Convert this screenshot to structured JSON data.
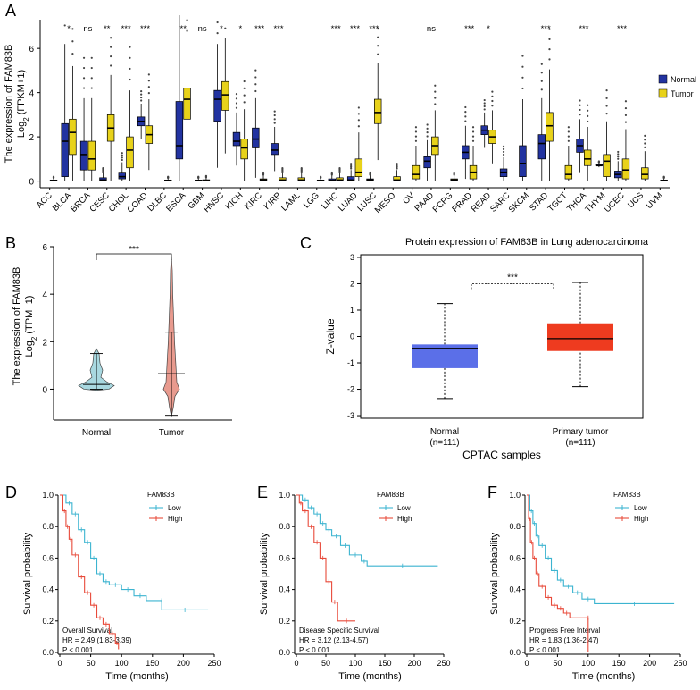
{
  "panels": {
    "A": {
      "label": "A"
    },
    "B": {
      "label": "B"
    },
    "C": {
      "label": "C"
    },
    "D": {
      "label": "D"
    },
    "E": {
      "label": "E"
    },
    "F": {
      "label": "F"
    }
  },
  "colors": {
    "normal": "#2233a0",
    "tumor": "#e8d21a",
    "violin_normal": "#a8d8e0",
    "violin_tumor": "#e89a8e",
    "cptac_normal": "#5b6fe8",
    "cptac_tumor": "#ee3b1f",
    "km_low": "#3cb4d0",
    "km_high": "#e84a3a"
  },
  "chart_data": [
    {
      "id": "A",
      "type": "box",
      "ylabel_line1": "The expression of FAM83B",
      "ylabel_line2_main": "Log",
      "ylabel_line2_sub": "2",
      "ylabel_line2_tail": " (FPKM+1)",
      "ylim": [
        -0.3,
        7.3
      ],
      "yticks": [
        "0",
        "2",
        "4",
        "6"
      ],
      "legend": {
        "normal": "Normal",
        "tumor": "Tumor"
      },
      "categories": [
        "ACC",
        "BLCA",
        "BRCA",
        "CESC",
        "CHOL",
        "COAD",
        "DLBC",
        "ESCA",
        "GBM",
        "HNSC",
        "KICH",
        "KIRC",
        "KIRP",
        "LAML",
        "LGG",
        "LIHC",
        "LUAD",
        "LUSC",
        "MESO",
        "OV",
        "PAAD",
        "PCPG",
        "PRAD",
        "READ",
        "SARC",
        "SKCM",
        "STAD",
        "TGCT",
        "THCA",
        "THYM",
        "UCEC",
        "UCS",
        "UVM"
      ],
      "significance": [
        "",
        "*",
        "ns",
        "**",
        "***",
        "***",
        "",
        "**",
        "ns",
        "*",
        "*",
        "***",
        "***",
        "",
        "",
        "***",
        "***",
        "***",
        "",
        "",
        "ns",
        "",
        "***",
        "*",
        "",
        "",
        "***",
        "",
        "***",
        "",
        "***",
        "",
        ""
      ],
      "normal": [
        null,
        [
          0.2,
          1.8,
          2.6
        ],
        [
          0.5,
          1.2,
          1.8
        ],
        [
          0.0,
          0.05,
          0.15
        ],
        [
          0.1,
          0.2,
          0.4
        ],
        [
          2.5,
          2.7,
          2.9
        ],
        null,
        [
          1.0,
          1.6,
          3.6
        ],
        [
          0.0,
          0.02,
          0.05
        ],
        [
          2.7,
          3.7,
          4.1
        ],
        [
          1.6,
          1.8,
          2.2
        ],
        [
          1.5,
          1.9,
          2.4
        ],
        [
          1.2,
          1.4,
          1.7
        ],
        null,
        null,
        [
          0.0,
          0.03,
          0.1
        ],
        [
          0.0,
          0.05,
          0.2
        ],
        [
          0.0,
          0.05,
          0.1
        ],
        null,
        null,
        [
          0.6,
          0.9,
          1.1
        ],
        null,
        [
          1.0,
          1.3,
          1.6
        ],
        [
          2.1,
          2.3,
          2.5
        ],
        [
          0.2,
          0.4,
          0.55
        ],
        [
          0.2,
          0.8,
          1.6
        ],
        [
          1.0,
          1.7,
          2.1
        ],
        null,
        [
          1.3,
          1.6,
          1.9
        ],
        [
          0.7,
          0.7,
          0.75
        ],
        [
          0.15,
          0.3,
          0.45
        ],
        null,
        null
      ],
      "tumor": [
        [
          0.0,
          0.02,
          0.05
        ],
        [
          1.2,
          2.2,
          2.8
        ],
        [
          0.5,
          1.0,
          1.8
        ],
        [
          1.8,
          2.4,
          3.0
        ],
        [
          0.6,
          1.4,
          2.0
        ],
        [
          1.7,
          2.1,
          2.5
        ],
        [
          0.0,
          0.02,
          0.05
        ],
        [
          2.8,
          3.7,
          4.2
        ],
        [
          0.0,
          0.02,
          0.06
        ],
        [
          3.2,
          3.9,
          4.5
        ],
        [
          1.0,
          1.5,
          1.9
        ],
        [
          0.0,
          0.05,
          0.1
        ],
        [
          0.0,
          0.05,
          0.15
        ],
        [
          0.0,
          0.05,
          0.15
        ],
        [
          0.0,
          0.02,
          0.05
        ],
        [
          0.0,
          0.05,
          0.15
        ],
        [
          0.2,
          0.4,
          1.0
        ],
        [
          2.6,
          3.1,
          3.7
        ],
        [
          0.0,
          0.05,
          0.2
        ],
        [
          0.1,
          0.3,
          0.7
        ],
        [
          1.2,
          1.6,
          2.0
        ],
        [
          0.0,
          0.05,
          0.1
        ],
        [
          0.1,
          0.4,
          0.7
        ],
        [
          1.7,
          2.0,
          2.3
        ],
        null,
        null,
        [
          1.8,
          2.5,
          3.1
        ],
        [
          0.1,
          0.3,
          0.7
        ],
        [
          0.7,
          1.0,
          1.4
        ],
        [
          0.2,
          0.9,
          1.2
        ],
        [
          0.1,
          0.5,
          1.0
        ],
        [
          0.1,
          0.3,
          0.6
        ],
        [
          0.0,
          0.02,
          0.05
        ]
      ]
    },
    {
      "id": "B",
      "type": "violin",
      "ylabel_line1": "The expression of FAM83B",
      "ylabel_line2_main": "Log",
      "ylabel_line2_sub": "2",
      "ylabel_line2_tail": " (TPM+1)",
      "categories": [
        "Normal",
        "Tumor"
      ],
      "ylim": [
        -1.3,
        6.0
      ],
      "yticks": [
        "0",
        "2",
        "4",
        "6"
      ],
      "significance": "***",
      "median": [
        0.2,
        0.65
      ],
      "q1": [
        0.1,
        0.1
      ],
      "q3": [
        0.4,
        1.5
      ],
      "whisker": [
        [
          0.0,
          1.5
        ],
        [
          -1.1,
          2.4
        ]
      ]
    },
    {
      "id": "C",
      "type": "box",
      "title": "Protein expression of FAM83B in Lung adenocarcinoma",
      "ylabel": "Z-value",
      "xlabel": "CPTAC samples",
      "categories": [
        "Normal",
        "Primary tumor"
      ],
      "counts": [
        "(n=111)",
        "(n=111)"
      ],
      "ylim": [
        -3.1,
        3.1
      ],
      "yticks": [
        "3",
        "2",
        "1",
        "0",
        "-1",
        "-2",
        "-3"
      ],
      "significance": "***",
      "boxes": [
        {
          "min": -2.35,
          "q1": -1.2,
          "median": -0.45,
          "q3": -0.3,
          "max": 1.25
        },
        {
          "min": -1.9,
          "q1": -0.55,
          "median": -0.08,
          "q3": 0.5,
          "max": 2.05
        }
      ]
    },
    {
      "id": "D",
      "type": "line",
      "subtype": "kaplan-meier",
      "ylabel": "Survival probability",
      "xlabel": "Time (months)",
      "legend_title": "FAM83B",
      "legend": [
        "Low",
        "High"
      ],
      "annot": [
        "Overall Survival",
        "HR = 2.49 (1.83-3.39)",
        "P < 0.001"
      ],
      "xlim": [
        0,
        250
      ],
      "ylim": [
        0,
        1
      ],
      "xticks": [
        "0",
        "50",
        "100",
        "150",
        "200",
        "250"
      ],
      "yticks": [
        "0.0",
        "0.2",
        "0.4",
        "0.6",
        "0.8",
        "1.0"
      ],
      "low": [
        [
          0,
          1
        ],
        [
          10,
          0.95
        ],
        [
          20,
          0.88
        ],
        [
          30,
          0.78
        ],
        [
          40,
          0.7
        ],
        [
          50,
          0.6
        ],
        [
          60,
          0.5
        ],
        [
          70,
          0.45
        ],
        [
          80,
          0.43
        ],
        [
          100,
          0.4
        ],
        [
          120,
          0.36
        ],
        [
          140,
          0.33
        ],
        [
          165,
          0.33
        ],
        [
          165,
          0.27
        ],
        [
          240,
          0.27
        ]
      ],
      "high": [
        [
          0,
          1
        ],
        [
          5,
          0.9
        ],
        [
          10,
          0.8
        ],
        [
          15,
          0.72
        ],
        [
          20,
          0.62
        ],
        [
          30,
          0.48
        ],
        [
          40,
          0.38
        ],
        [
          50,
          0.3
        ],
        [
          60,
          0.22
        ],
        [
          70,
          0.18
        ],
        [
          80,
          0.12
        ],
        [
          90,
          0.06
        ],
        [
          95,
          0.02
        ]
      ]
    },
    {
      "id": "E",
      "type": "line",
      "subtype": "kaplan-meier",
      "ylabel": "Survival probability",
      "xlabel": "Time (months)",
      "legend_title": "FAM83B",
      "legend": [
        "Low",
        "High"
      ],
      "annot": [
        "Disease Specific Survival",
        "HR = 3.12 (2.13-4.57)",
        "P < 0.001"
      ],
      "xlim": [
        0,
        250
      ],
      "ylim": [
        0,
        1
      ],
      "xticks": [
        "0",
        "50",
        "100",
        "150",
        "200",
        "250"
      ],
      "yticks": [
        "0.0",
        "0.2",
        "0.4",
        "0.6",
        "0.8",
        "1.0"
      ],
      "low": [
        [
          0,
          1
        ],
        [
          10,
          0.97
        ],
        [
          20,
          0.92
        ],
        [
          30,
          0.88
        ],
        [
          40,
          0.82
        ],
        [
          50,
          0.78
        ],
        [
          60,
          0.74
        ],
        [
          75,
          0.68
        ],
        [
          90,
          0.62
        ],
        [
          110,
          0.58
        ],
        [
          120,
          0.55
        ],
        [
          240,
          0.55
        ]
      ],
      "high": [
        [
          0,
          1
        ],
        [
          5,
          0.95
        ],
        [
          10,
          0.9
        ],
        [
          20,
          0.8
        ],
        [
          30,
          0.7
        ],
        [
          40,
          0.6
        ],
        [
          50,
          0.45
        ],
        [
          60,
          0.32
        ],
        [
          70,
          0.2
        ],
        [
          100,
          0.2
        ]
      ]
    },
    {
      "id": "F",
      "type": "line",
      "subtype": "kaplan-meier",
      "ylabel": "Survival probability",
      "xlabel": "Time (months)",
      "legend_title": "FAM83B",
      "legend": [
        "Low",
        "High"
      ],
      "annot": [
        "Progress Free Interval",
        "HR = 1.83 (1.36-2.47)",
        "P < 0.001"
      ],
      "xlim": [
        0,
        250
      ],
      "ylim": [
        0,
        1
      ],
      "xticks": [
        "0",
        "50",
        "100",
        "150",
        "200",
        "250"
      ],
      "yticks": [
        "0.0",
        "0.2",
        "0.4",
        "0.6",
        "0.8",
        "1.0"
      ],
      "low": [
        [
          0,
          1
        ],
        [
          5,
          0.9
        ],
        [
          10,
          0.82
        ],
        [
          15,
          0.74
        ],
        [
          20,
          0.68
        ],
        [
          30,
          0.6
        ],
        [
          40,
          0.52
        ],
        [
          50,
          0.46
        ],
        [
          60,
          0.42
        ],
        [
          75,
          0.38
        ],
        [
          90,
          0.34
        ],
        [
          110,
          0.31
        ],
        [
          240,
          0.31
        ]
      ],
      "high": [
        [
          0,
          1
        ],
        [
          3,
          0.85
        ],
        [
          6,
          0.7
        ],
        [
          10,
          0.6
        ],
        [
          15,
          0.5
        ],
        [
          20,
          0.42
        ],
        [
          30,
          0.35
        ],
        [
          40,
          0.3
        ],
        [
          50,
          0.28
        ],
        [
          60,
          0.25
        ],
        [
          70,
          0.22
        ],
        [
          100,
          0.22
        ],
        [
          100,
          0.0
        ]
      ]
    }
  ]
}
